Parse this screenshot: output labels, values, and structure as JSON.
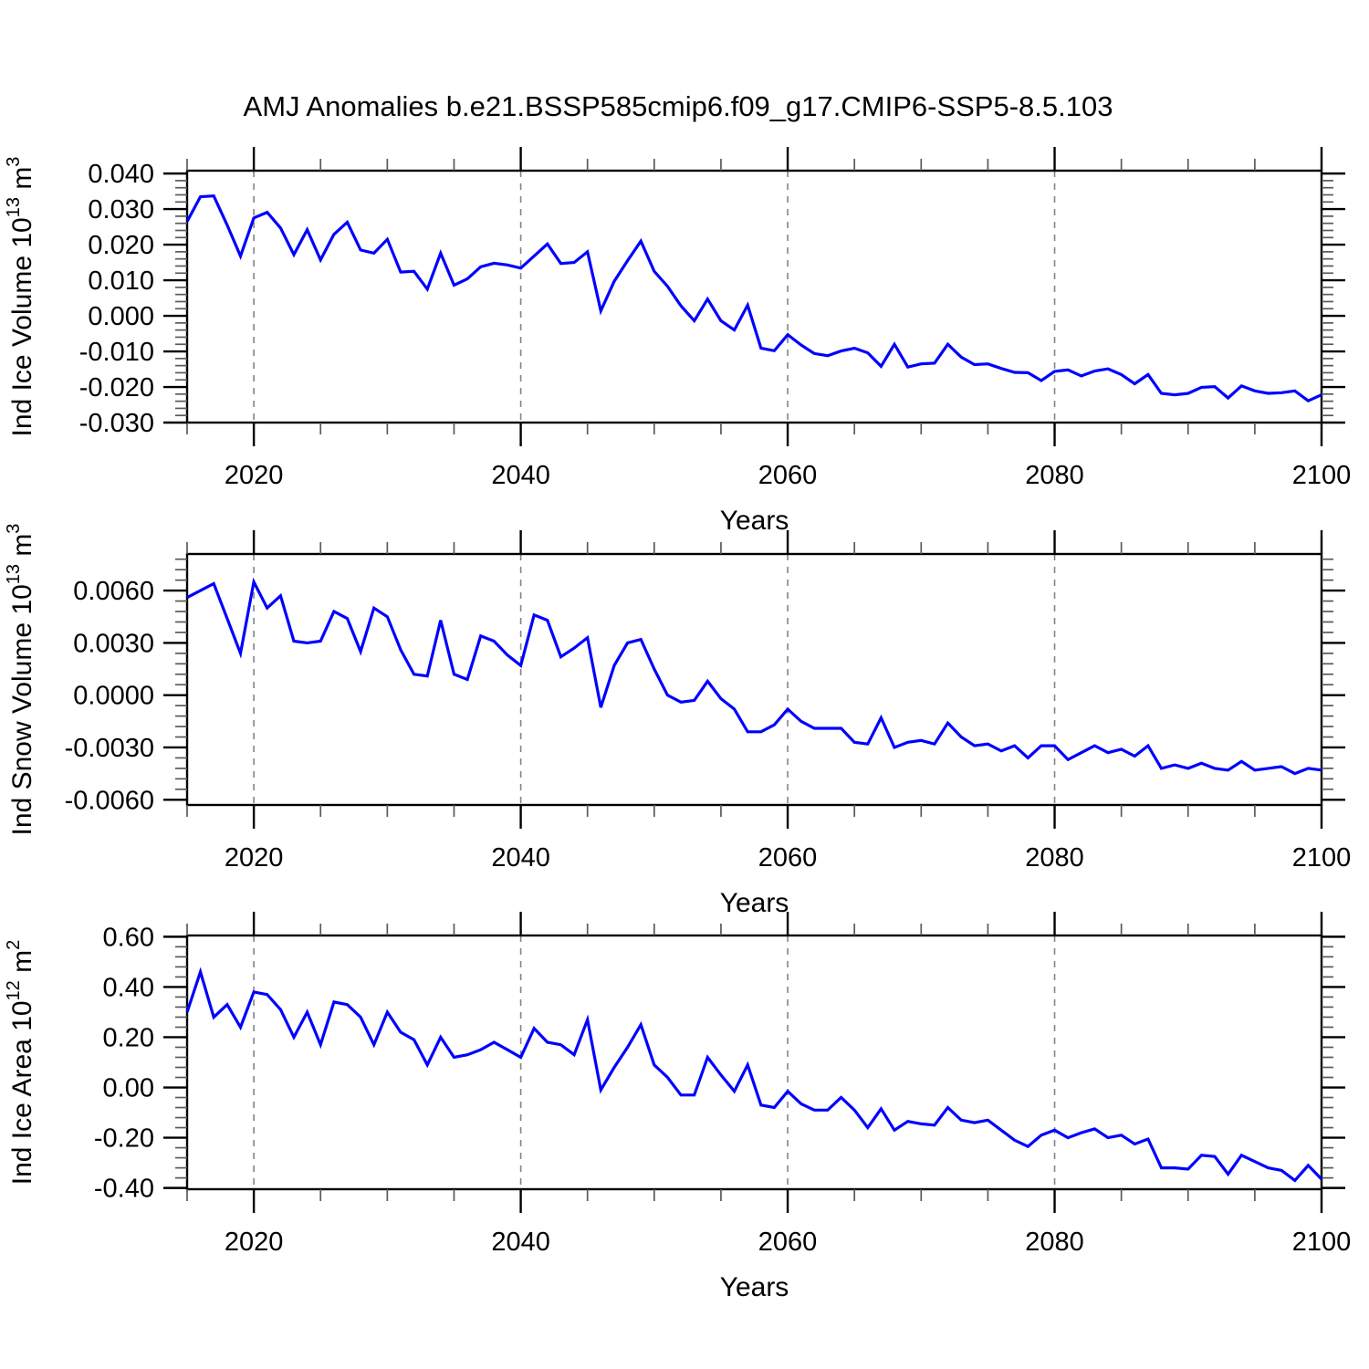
{
  "title": "AMJ Anomalies b.e21.BSSP585cmip6.f09_g17.CMIP6-SSP5-8.5.103",
  "colors": {
    "line": "#0000ff",
    "frame": "#000000",
    "grid": "#848484"
  },
  "chart_data": [
    {
      "type": "line",
      "name": "ind-ice-volume",
      "ylabel_parts": [
        "Ind Ice Volume 10",
        "13",
        " m",
        "3"
      ],
      "xlabel": "Years",
      "xlim": [
        2015,
        2100
      ],
      "ylim": [
        -0.03,
        0.0408
      ],
      "x_start": 2015,
      "x_major_ticks": [
        2020,
        2040,
        2060,
        2080,
        2100
      ],
      "x_tick_labels": [
        "2020",
        "2040",
        "2060",
        "2080",
        "2100"
      ],
      "x_minor_step": 5,
      "x_gridlines": [
        2020,
        2040,
        2060,
        2080
      ],
      "y_major_ticks": [
        0.04,
        0.03,
        0.02,
        0.01,
        0.0,
        -0.01,
        -0.02,
        -0.03
      ],
      "y_tick_labels": [
        "0.040",
        "0.030",
        "0.020",
        "0.010",
        "0.000",
        "-0.010",
        "-0.020",
        "-0.030"
      ],
      "y_minor_step": 0.002,
      "grid": true,
      "legend": "none",
      "values": [
        0.0265,
        0.0335,
        0.0337,
        0.0255,
        0.0168,
        0.0275,
        0.0291,
        0.0247,
        0.0172,
        0.0242,
        0.0157,
        0.0229,
        0.0263,
        0.0185,
        0.0176,
        0.0215,
        0.0123,
        0.0125,
        0.0075,
        0.0176,
        0.0086,
        0.0104,
        0.0138,
        0.0148,
        0.0143,
        0.0134,
        0.0168,
        0.0202,
        0.0147,
        0.015,
        0.018,
        0.0014,
        0.0097,
        0.0155,
        0.021,
        0.0125,
        0.0083,
        0.0028,
        -0.0014,
        0.0047,
        -0.0014,
        -0.004,
        0.003,
        -0.0091,
        -0.0098,
        -0.0053,
        -0.0082,
        -0.0106,
        -0.0112,
        -0.0099,
        -0.0091,
        -0.0104,
        -0.0142,
        -0.008,
        -0.0144,
        -0.0135,
        -0.0133,
        -0.008,
        -0.0116,
        -0.0137,
        -0.0135,
        -0.0148,
        -0.0159,
        -0.016,
        -0.0182,
        -0.0156,
        -0.0152,
        -0.0169,
        -0.0155,
        -0.0149,
        -0.0165,
        -0.0191,
        -0.0165,
        -0.0218,
        -0.0222,
        -0.0218,
        -0.0201,
        -0.0199,
        -0.0231,
        -0.0197,
        -0.0211,
        -0.0218,
        -0.0216,
        -0.0211,
        -0.0239,
        -0.0222
      ]
    },
    {
      "type": "line",
      "name": "ind-snow-volume",
      "ylabel_parts": [
        "Ind Snow Volume 10",
        "13",
        " m",
        "3"
      ],
      "xlabel": "Years",
      "xlim": [
        2015,
        2100
      ],
      "ylim": [
        -0.0063,
        0.0081
      ],
      "x_start": 2015,
      "x_major_ticks": [
        2020,
        2040,
        2060,
        2080,
        2100
      ],
      "x_tick_labels": [
        "2020",
        "2040",
        "2060",
        "2080",
        "2100"
      ],
      "x_minor_step": 5,
      "x_gridlines": [
        2020,
        2040,
        2060,
        2080
      ],
      "y_major_ticks": [
        0.006,
        0.003,
        0.0,
        -0.003,
        -0.006
      ],
      "y_tick_labels": [
        "0.0060",
        "0.0030",
        "0.0000",
        "-0.0030",
        "-0.0060"
      ],
      "y_minor_step": 0.0006,
      "grid": true,
      "legend": "none",
      "values": [
        0.0056,
        0.006,
        0.0064,
        0.0044,
        0.0024,
        0.0065,
        0.005,
        0.0057,
        0.0031,
        0.003,
        0.0031,
        0.0048,
        0.0044,
        0.0025,
        0.005,
        0.0045,
        0.0026,
        0.0012,
        0.0011,
        0.0043,
        0.0012,
        0.0009,
        0.0034,
        0.0031,
        0.0023,
        0.0017,
        0.0046,
        0.0043,
        0.0022,
        0.0027,
        0.0033,
        -0.0007,
        0.0017,
        0.003,
        0.0032,
        0.0015,
        0.0,
        -0.0004,
        -0.0003,
        0.0008,
        -0.0002,
        -0.0008,
        -0.0021,
        -0.0021,
        -0.0017,
        -0.0008,
        -0.0015,
        -0.0019,
        -0.0019,
        -0.0019,
        -0.0027,
        -0.0028,
        -0.0013,
        -0.003,
        -0.0027,
        -0.0026,
        -0.0028,
        -0.0016,
        -0.0024,
        -0.0029,
        -0.0028,
        -0.0032,
        -0.0029,
        -0.0036,
        -0.0029,
        -0.0029,
        -0.0037,
        -0.0033,
        -0.0029,
        -0.0033,
        -0.0031,
        -0.0035,
        -0.0029,
        -0.0042,
        -0.004,
        -0.0042,
        -0.0039,
        -0.0042,
        -0.0043,
        -0.0038,
        -0.0043,
        -0.0042,
        -0.0041,
        -0.0045,
        -0.0042,
        -0.0043
      ]
    },
    {
      "type": "line",
      "name": "ind-ice-area",
      "ylabel_parts": [
        "Ind Ice Area 10",
        "12",
        " m",
        "2"
      ],
      "xlabel": "Years",
      "xlim": [
        2015,
        2100
      ],
      "ylim": [
        -0.405,
        0.605
      ],
      "x_start": 2015,
      "x_major_ticks": [
        2020,
        2040,
        2060,
        2080,
        2100
      ],
      "x_tick_labels": [
        "2020",
        "2040",
        "2060",
        "2080",
        "2100"
      ],
      "x_minor_step": 5,
      "x_gridlines": [
        2020,
        2040,
        2060,
        2080
      ],
      "y_major_ticks": [
        0.6,
        0.4,
        0.2,
        0.0,
        -0.2,
        -0.4
      ],
      "y_tick_labels": [
        "0.60",
        "0.40",
        "0.20",
        "0.00",
        "-0.20",
        "-0.40"
      ],
      "y_minor_step": 0.04,
      "grid": true,
      "legend": "none",
      "values": [
        0.3,
        0.46,
        0.28,
        0.33,
        0.24,
        0.38,
        0.37,
        0.31,
        0.2,
        0.3,
        0.17,
        0.34,
        0.33,
        0.28,
        0.17,
        0.3,
        0.22,
        0.19,
        0.09,
        0.2,
        0.12,
        0.13,
        0.15,
        0.18,
        0.15,
        0.12,
        0.235,
        0.18,
        0.17,
        0.13,
        0.27,
        -0.01,
        0.08,
        0.16,
        0.25,
        0.09,
        0.04,
        -0.03,
        -0.03,
        0.12,
        0.05,
        -0.015,
        0.09,
        -0.07,
        -0.08,
        -0.015,
        -0.065,
        -0.09,
        -0.09,
        -0.04,
        -0.09,
        -0.16,
        -0.085,
        -0.17,
        -0.135,
        -0.145,
        -0.15,
        -0.08,
        -0.13,
        -0.14,
        -0.13,
        -0.17,
        -0.21,
        -0.235,
        -0.19,
        -0.17,
        -0.2,
        -0.18,
        -0.165,
        -0.2,
        -0.19,
        -0.225,
        -0.205,
        -0.32,
        -0.32,
        -0.325,
        -0.27,
        -0.275,
        -0.345,
        -0.27,
        -0.295,
        -0.32,
        -0.33,
        -0.37,
        -0.31,
        -0.365
      ]
    }
  ]
}
